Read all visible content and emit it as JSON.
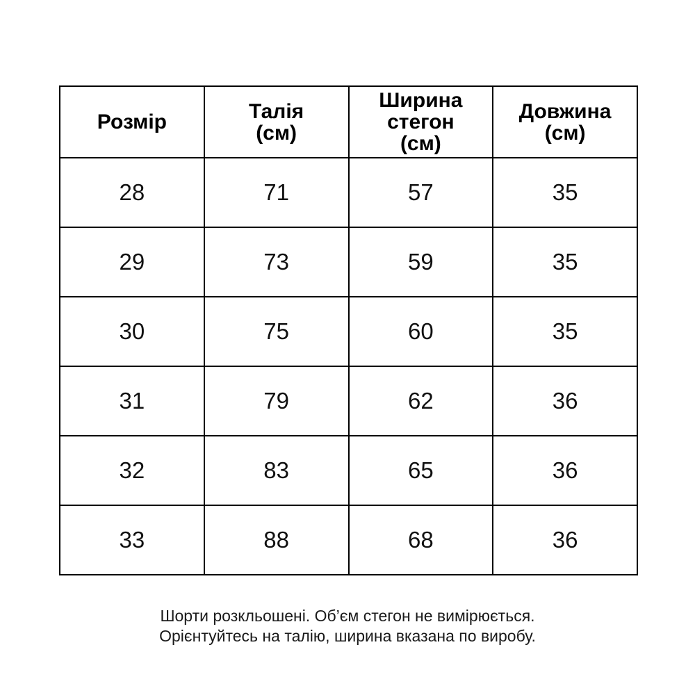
{
  "chart_data": {
    "type": "table",
    "columns": [
      "Розмір",
      "Талія\n(см)",
      "Ширина\nстегон\n(см)",
      "Довжина\n(см)"
    ],
    "rows": [
      [
        "28",
        "71",
        "57",
        "35"
      ],
      [
        "29",
        "73",
        "59",
        "35"
      ],
      [
        "30",
        "75",
        "60",
        "35"
      ],
      [
        "31",
        "79",
        "62",
        "36"
      ],
      [
        "32",
        "83",
        "65",
        "36"
      ],
      [
        "33",
        "88",
        "68",
        "36"
      ]
    ]
  },
  "footer": {
    "line1": "Шорти розкльошені. Об’єм стегон не вимірюється.",
    "line2": "Орієнтуйтесь на талію, ширина вказана по виробу."
  },
  "colors": {
    "border": "#000000",
    "text": "#111111",
    "background": "#ffffff"
  }
}
